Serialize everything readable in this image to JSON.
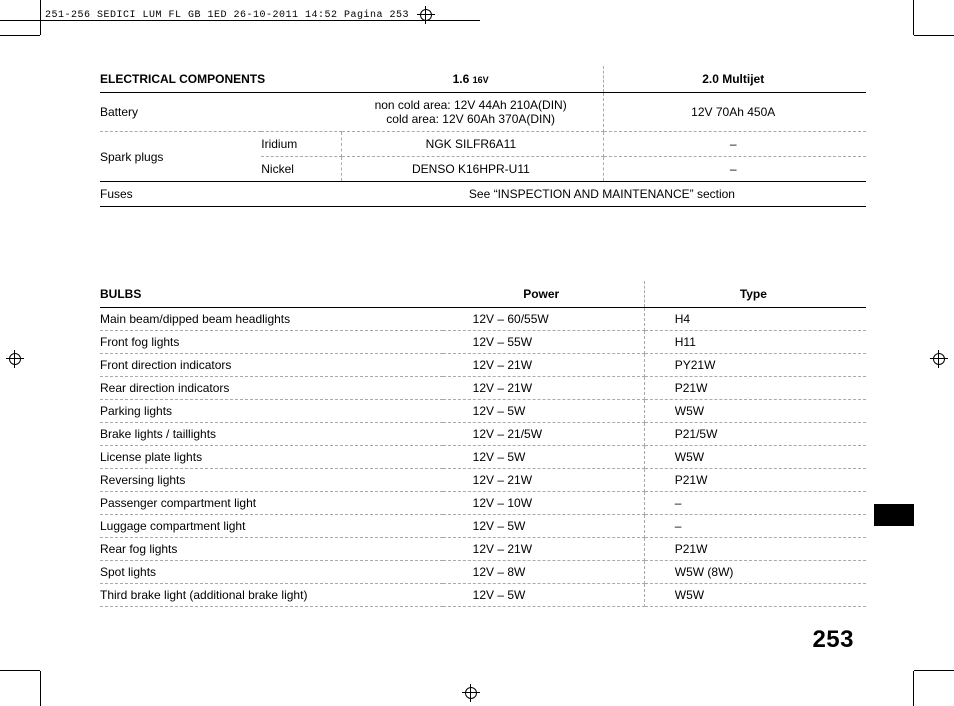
{
  "header": {
    "file_stamp": "251-256 SEDICI LUM FL GB 1ED  26-10-2011  14:52  Pagina 253"
  },
  "electrical": {
    "title": "ELECTRICAL COMPONENTS",
    "col1": "1.6",
    "col1_sup": "16V",
    "col2": "2.0 Multijet",
    "rows": {
      "battery_label": "Battery",
      "battery_c1_line1": "non cold area: 12V 44Ah 210A(DIN)",
      "battery_c1_line2": "cold area: 12V 60Ah 370A(DIN)",
      "battery_c2": "12V 70Ah 450A",
      "spark_label": "Spark plugs",
      "spark_sub1": "Iridium",
      "spark_sub1_c1": "NGK SILFR6A11",
      "spark_sub1_c2": "–",
      "spark_sub2": "Nickel",
      "spark_sub2_c1": "DENSO K16HPR-U11",
      "spark_sub2_c2": "–",
      "fuses_label": "Fuses",
      "fuses_span": "See “INSPECTION AND MAINTENANCE” section"
    }
  },
  "bulbs": {
    "title": "BULBS",
    "col1": "Power",
    "col2": "Type",
    "rows": [
      {
        "label": "Main beam/dipped beam headlights",
        "power": "12V – 60/55W",
        "type": "H4"
      },
      {
        "label": "Front fog lights",
        "power": "12V – 55W",
        "type": "H11"
      },
      {
        "label": "Front direction indicators",
        "power": "12V – 21W",
        "type": "PY21W"
      },
      {
        "label": "Rear direction indicators",
        "power": "12V – 21W",
        "type": "P21W"
      },
      {
        "label": "Parking lights",
        "power": "12V – 5W",
        "type": "W5W"
      },
      {
        "label": "Brake lights / taillights",
        "power": "12V – 21/5W",
        "type": "P21/5W"
      },
      {
        "label": "License plate lights",
        "power": "12V – 5W",
        "type": "W5W"
      },
      {
        "label": "Reversing lights",
        "power": "12V – 21W",
        "type": "P21W"
      },
      {
        "label": "Passenger compartment light",
        "power": "12V – 10W",
        "type": "–"
      },
      {
        "label": "Luggage compartment light",
        "power": "12V – 5W",
        "type": "–"
      },
      {
        "label": "Rear fog lights",
        "power": "12V – 21W",
        "type": "P21W"
      },
      {
        "label": "Spot lights",
        "power": "12V – 8W",
        "type": "W5W (8W)"
      },
      {
        "label": "Third brake light (additional brake light)",
        "power": "12V – 5W",
        "type": "W5W"
      }
    ]
  },
  "page_number": "253"
}
